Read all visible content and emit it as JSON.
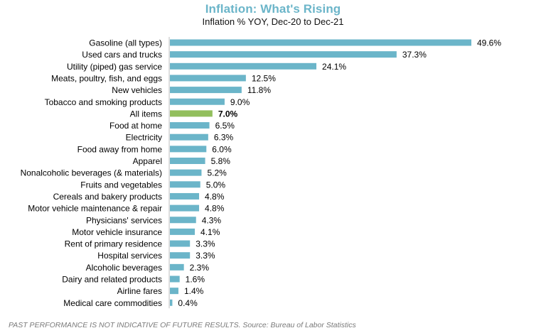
{
  "chart_data": {
    "type": "bar",
    "orientation": "horizontal",
    "title": "Inflation: What's Rising",
    "subtitle": "Inflation % YOY, Dec-20 to Dec-21",
    "xlabel": "",
    "ylabel": "",
    "xlim": [
      0,
      55
    ],
    "grid": false,
    "legend": "none",
    "value_suffix": "%",
    "categories": [
      "Gasoline (all types)",
      "Used cars and trucks",
      "Utility (piped) gas service",
      "Meats, poultry, fish, and eggs",
      "New vehicles",
      "Tobacco and smoking products",
      "All items",
      "Food at home",
      "Electricity",
      "Food away from home",
      "Apparel",
      "Nonalcoholic beverages (& materials)",
      "Fruits and vegetables",
      "Cereals and bakery products",
      "Motor vehicle maintenance & repair",
      "Physicians' services",
      "Motor vehicle insurance",
      "Rent of primary residence",
      "Hospital services",
      "Alcoholic beverages",
      "Dairy and related products",
      "Airline fares",
      "Medical care commodities"
    ],
    "values": [
      49.6,
      37.3,
      24.1,
      12.5,
      11.8,
      9.0,
      7.0,
      6.5,
      6.3,
      6.0,
      5.8,
      5.2,
      5.0,
      4.8,
      4.8,
      4.3,
      4.1,
      3.3,
      3.3,
      2.3,
      1.6,
      1.4,
      0.4
    ],
    "highlight_category": "All items",
    "colors": {
      "bar": "#6bb5c9",
      "highlight": "#92bf5d",
      "title": "#6bb5c9"
    }
  },
  "footnote": "PAST PERFORMANCE IS NOT INDICATIVE OF FUTURE RESULTS. Source: Bureau of Labor Statistics"
}
